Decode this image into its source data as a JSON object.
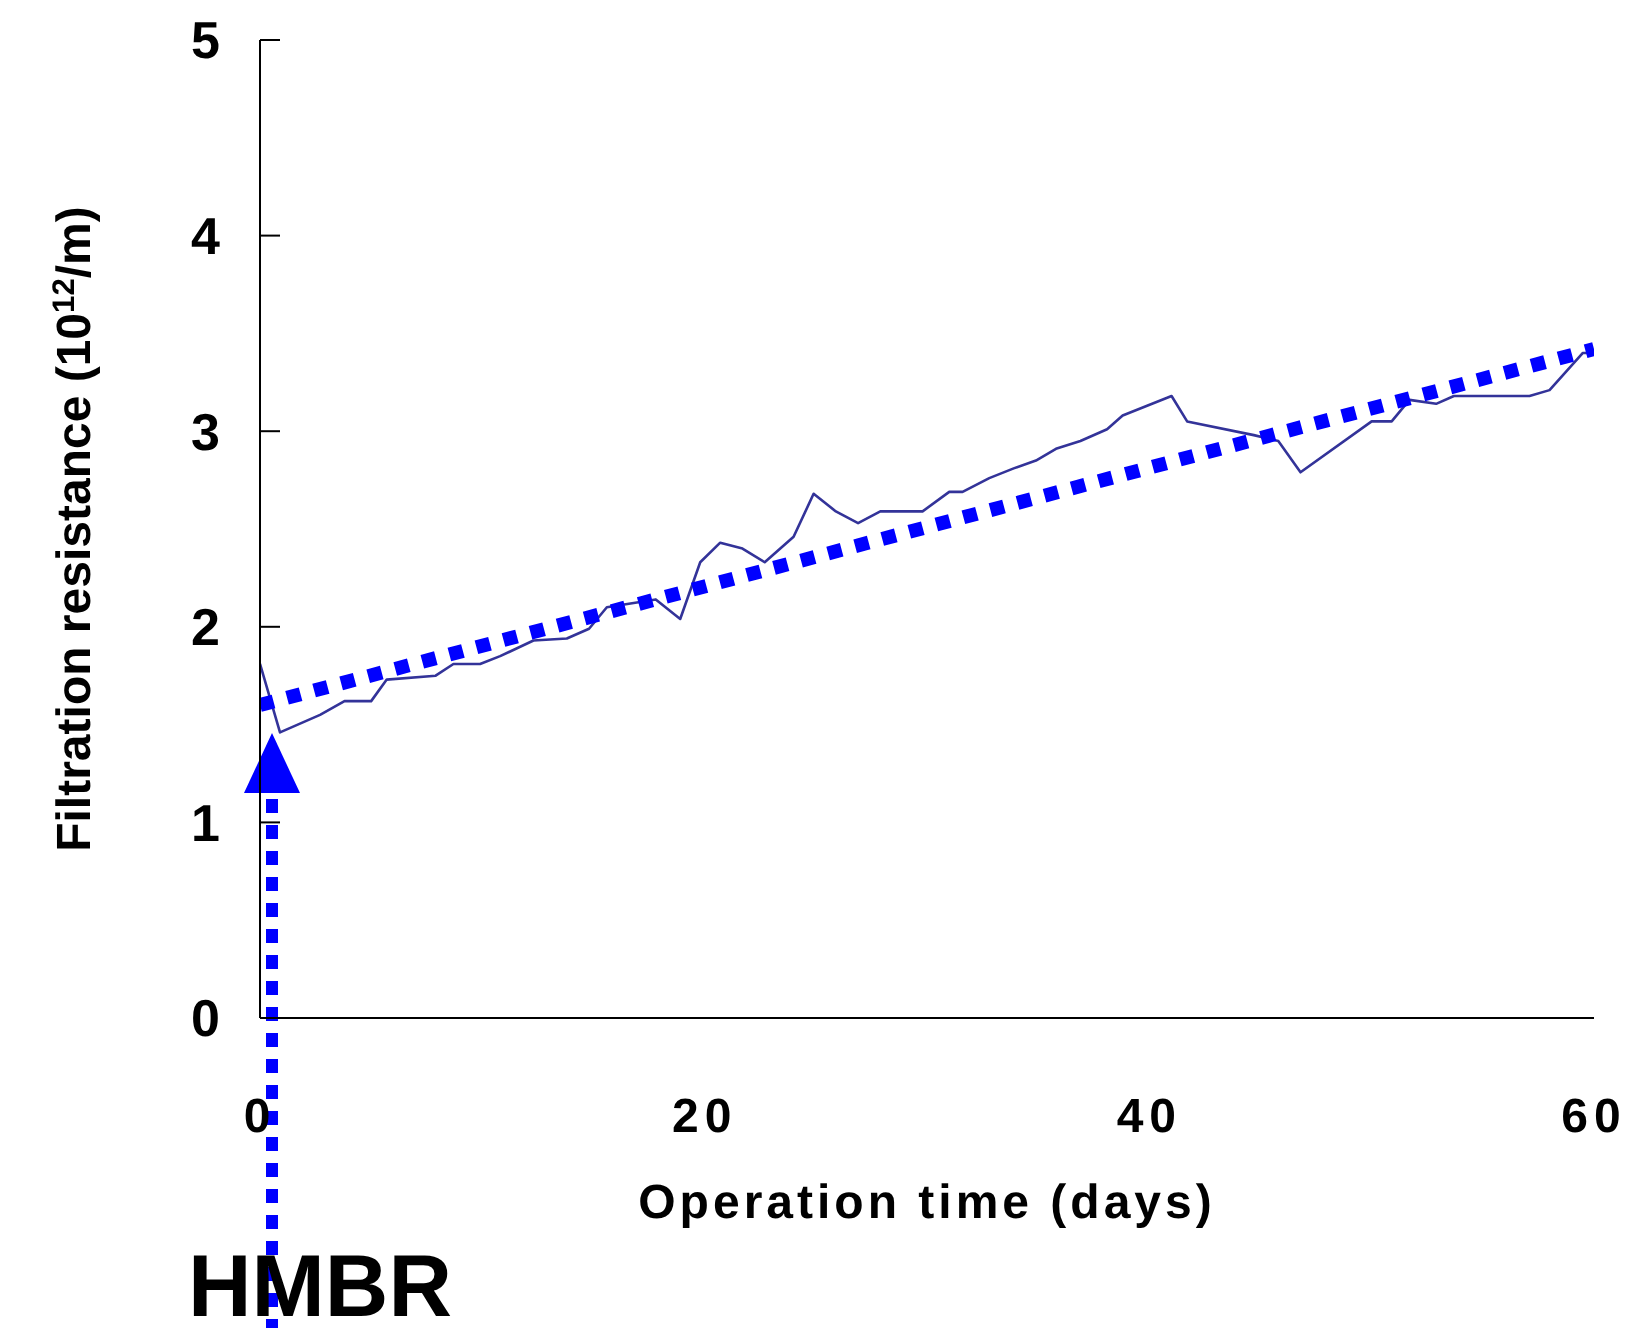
{
  "chart_data": {
    "type": "line",
    "xlabel": "Operation time (days)",
    "ylabel": "Filtration resistance (10$^{12}$/m)",
    "xlim": [
      0,
      60
    ],
    "xticks": [
      0,
      20,
      40,
      60
    ],
    "ylim": [
      0,
      5
    ],
    "yticks": [
      0,
      1,
      2,
      3,
      4,
      5
    ],
    "grid": false,
    "marker": "none",
    "annotations": [
      "HMBR"
    ],
    "series": [
      {
        "color": "#333399",
        "line_style": "solid",
        "x": [
          0,
          0.9,
          2.7,
          3.8,
          5.0,
          5.7,
          7.9,
          8.7,
          9.9,
          10.8,
          12.3,
          13.8,
          14.8,
          15.6,
          17.8,
          18.9,
          19.8,
          20.7,
          21.7,
          22.7,
          24.0,
          24.9,
          25.9,
          26.9,
          27.9,
          29.8,
          31.0,
          31.6,
          32.8,
          33.9,
          34.9,
          35.8,
          36.9,
          38.1,
          38.8,
          39.9,
          41.0,
          41.7,
          44.7,
          45.8,
          46.8,
          50.0,
          50.9,
          51.7,
          52.9,
          53.7,
          57.1,
          58.0,
          59.5,
          60
        ],
        "values": [
          1.81,
          1.46,
          1.55,
          1.62,
          1.62,
          1.73,
          1.75,
          1.81,
          1.81,
          1.85,
          1.93,
          1.94,
          1.99,
          2.1,
          2.14,
          2.04,
          2.33,
          2.43,
          2.4,
          2.33,
          2.46,
          2.68,
          2.59,
          2.53,
          2.59,
          2.59,
          2.69,
          2.69,
          2.76,
          2.81,
          2.85,
          2.91,
          2.95,
          3.01,
          3.08,
          3.13,
          3.18,
          3.05,
          2.98,
          2.95,
          2.79,
          3.05,
          3.05,
          3.16,
          3.14,
          3.18,
          3.18,
          3.21,
          3.4,
          3.4
        ]
      },
      {
        "color": "#0000ff",
        "line_style": "dotted",
        "x": [
          0,
          60
        ],
        "values": [
          1.6,
          3.42
        ]
      }
    ]
  }
}
